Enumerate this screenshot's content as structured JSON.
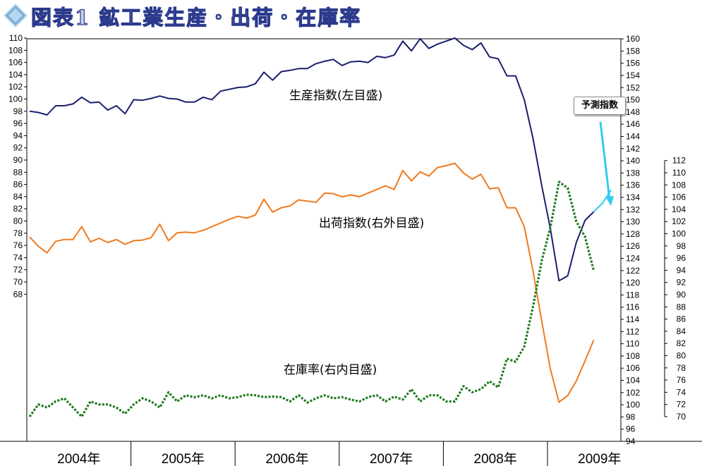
{
  "title": "図表1 鉱工業生産・出荷・在庫率",
  "colors": {
    "production": "#1a1f6e",
    "shipments": "#f07a1e",
    "inventory": "#1e7a1e",
    "forecast": "#33ccee",
    "title_fill": "#c7d3ea",
    "title_stroke": "#2b3a8c",
    "diamond_icon": "#7ab0d8"
  },
  "icons": {
    "title_icon": "diamond-icon",
    "forecast_arrow": "arrow-down-icon"
  },
  "chart_data": {
    "type": "line",
    "x_labels": [
      "2004年",
      "2005年",
      "2006年",
      "2007年",
      "2008年",
      "2009年"
    ],
    "x_start": "2004-01",
    "axes": {
      "left": {
        "range": [
          68,
          110
        ],
        "step": 2
      },
      "right_outer": {
        "range": [
          94,
          160
        ],
        "step": 2
      },
      "right_inner": {
        "range": [
          70,
          112
        ],
        "step": 2
      }
    },
    "annotations": {
      "production": "生産指数(左目盛)",
      "shipments": "出荷指数(右外目盛)",
      "inventory": "在庫率(右内目盛)",
      "forecast": "予測指数"
    },
    "series": [
      {
        "name": "生産指数(左目盛)",
        "axis": "left",
        "values": [
          98.0,
          97.8,
          97.4,
          98.9,
          98.9,
          99.2,
          100.3,
          99.4,
          99.5,
          98.2,
          98.9,
          97.6,
          99.9,
          99.8,
          100.1,
          100.5,
          100.1,
          100.0,
          99.5,
          99.5,
          100.3,
          99.9,
          101.3,
          101.6,
          101.9,
          102.0,
          102.5,
          104.4,
          103.1,
          104.5,
          104.7,
          105.0,
          105.0,
          105.8,
          106.2,
          106.5,
          105.5,
          106.1,
          106.2,
          106.0,
          107.0,
          106.8,
          107.2,
          109.5,
          107.9,
          109.9,
          108.3,
          109.0,
          109.5,
          110.0,
          108.8,
          108.1,
          109.2,
          106.9,
          106.6,
          103.8,
          103.8,
          99.9,
          93.6,
          85.9,
          78.8,
          70.2,
          71.0,
          76.5,
          80.1,
          81.5
        ]
      },
      {
        "name": "出荷指数(右外目盛)",
        "axis": "right_outer",
        "values": [
          127.5,
          126.0,
          124.9,
          126.8,
          127.1,
          127.1,
          129.2,
          126.7,
          127.3,
          126.6,
          127.1,
          126.3,
          126.9,
          127.0,
          127.4,
          129.6,
          126.9,
          128.2,
          128.3,
          128.2,
          128.6,
          129.2,
          129.8,
          130.4,
          130.9,
          130.6,
          131.1,
          133.7,
          131.6,
          132.3,
          132.6,
          133.6,
          133.4,
          133.2,
          134.7,
          134.6,
          134.1,
          134.4,
          134.1,
          134.7,
          135.3,
          135.9,
          135.3,
          138.4,
          136.7,
          138.2,
          137.5,
          138.9,
          139.2,
          139.6,
          138.0,
          137.0,
          137.8,
          135.4,
          135.6,
          132.3,
          132.3,
          129.2,
          122.0,
          113.8,
          105.9,
          100.4,
          101.5,
          103.9,
          107.2,
          110.6
        ]
      },
      {
        "name": "在庫率(右内目盛)",
        "axis": "right_inner",
        "values": [
          70.0,
          72.0,
          71.5,
          72.5,
          73.0,
          71.5,
          70.0,
          72.5,
          72.0,
          72.0,
          71.5,
          70.5,
          72.0,
          73.0,
          72.5,
          71.5,
          74.0,
          72.5,
          73.5,
          73.2,
          73.5,
          73.0,
          73.5,
          73.0,
          73.2,
          73.6,
          73.5,
          73.2,
          73.3,
          73.2,
          72.5,
          73.5,
          72.3,
          73.0,
          73.5,
          73.0,
          73.2,
          72.8,
          72.5,
          73.2,
          73.5,
          72.5,
          73.3,
          72.8,
          74.5,
          72.5,
          73.5,
          73.5,
          72.5,
          72.5,
          75.0,
          74.0,
          74.5,
          75.8,
          74.8,
          79.5,
          79.0,
          81.5,
          88.0,
          95.5,
          101.0,
          108.5,
          107.5,
          102.0,
          99.5,
          94.0
        ]
      },
      {
        "name": "予測指数",
        "axis": "left",
        "x_index": [
          65,
          66,
          67
        ],
        "values": [
          81.5,
          82.9,
          85.1
        ]
      }
    ]
  }
}
